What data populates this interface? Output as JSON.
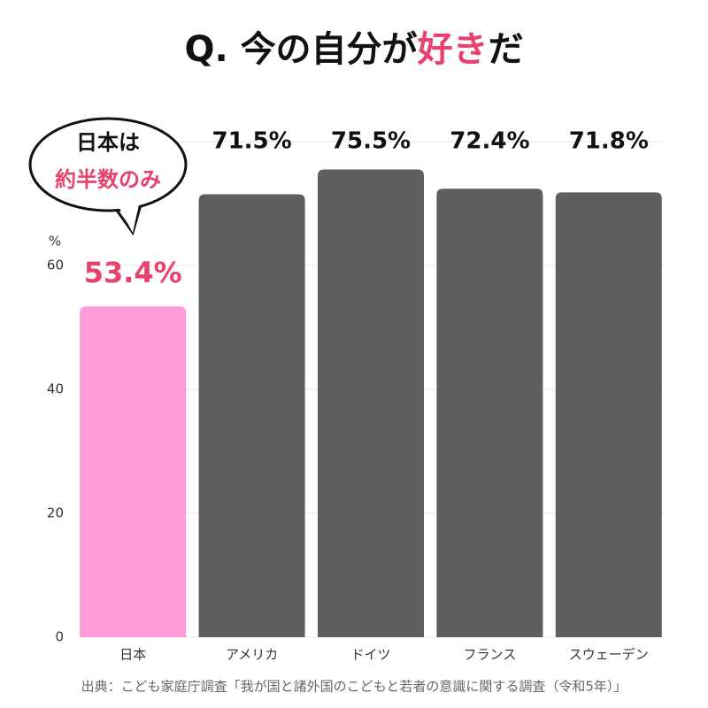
{
  "chart_data": {
    "type": "bar",
    "title": {
      "before": "Q. 今の自分が",
      "highlight": "好き",
      "after": "だ"
    },
    "annotation": {
      "line1": "日本は",
      "line2": "約半数のみ"
    },
    "y_unit": "%",
    "categories": [
      "日本",
      "アメリカ",
      "ドイツ",
      "フランス",
      "スウェーデン"
    ],
    "values": [
      53.4,
      71.5,
      75.5,
      72.4,
      71.8
    ],
    "value_labels": [
      "53.4%",
      "71.5%",
      "75.5%",
      "72.4%",
      "71.8%"
    ],
    "colors": [
      "#ff9bd8",
      "#5f5d60",
      "#5f5d60",
      "#5f5d60",
      "#5f5d60"
    ],
    "highlight_color": "#e8416c",
    "ylim": [
      0,
      80
    ],
    "yticks": [
      0,
      20,
      40,
      60
    ],
    "grid": true,
    "source": "出典：こども家庭庁調査「我が国と諸外国のこどもと若者の意識に関する調査（令和5年）」"
  }
}
